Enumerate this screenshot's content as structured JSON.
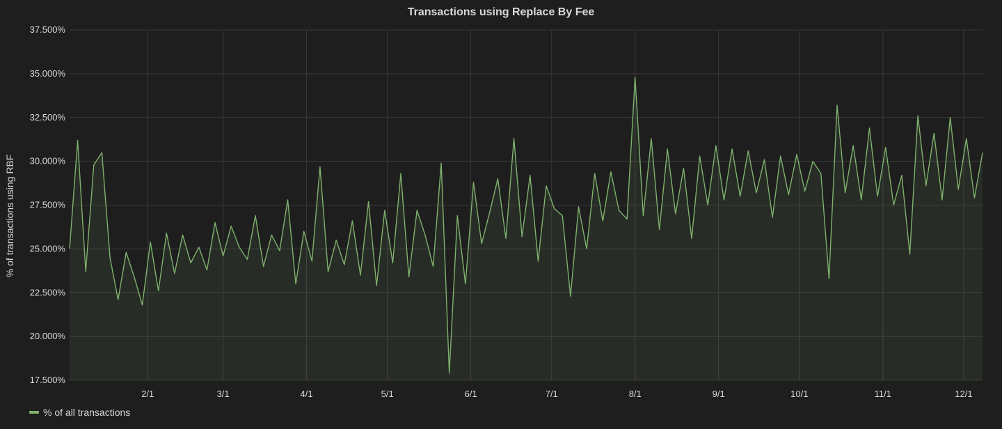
{
  "chart_data": {
    "type": "line",
    "title": "Transactions using Replace By Fee",
    "ylabel": "% of transactions using RBF",
    "xlabel": "",
    "ylim": [
      17.5,
      37.5
    ],
    "yticks": [
      17.5,
      20,
      22.5,
      25,
      27.5,
      30,
      32.5,
      35,
      37.5
    ],
    "ytick_labels": [
      "17.500%",
      "20.000%",
      "22.500%",
      "25.000%",
      "27.500%",
      "30.000%",
      "32.500%",
      "35.000%",
      "37.500%"
    ],
    "xlim": [
      "2017-01-03",
      "2017-12-08"
    ],
    "xticks": [
      "2017-02-01",
      "2017-03-01",
      "2017-04-01",
      "2017-05-01",
      "2017-06-01",
      "2017-07-01",
      "2017-08-01",
      "2017-09-01",
      "2017-10-01",
      "2017-11-01",
      "2017-12-01"
    ],
    "xtick_labels": [
      "2/1",
      "3/1",
      "4/1",
      "5/1",
      "6/1",
      "7/1",
      "8/1",
      "9/1",
      "10/1",
      "11/1",
      "12/1"
    ],
    "grid": true,
    "legend_position": "bottom-left",
    "series": [
      {
        "name": "% of all transactions",
        "color": "#7eb26d",
        "fill": true,
        "x": [
          "2017-01-03",
          "2017-01-06",
          "2017-01-09",
          "2017-01-12",
          "2017-01-15",
          "2017-01-18",
          "2017-01-21",
          "2017-01-24",
          "2017-01-27",
          "2017-01-30",
          "2017-02-02",
          "2017-02-05",
          "2017-02-08",
          "2017-02-11",
          "2017-02-14",
          "2017-02-17",
          "2017-02-20",
          "2017-02-23",
          "2017-02-26",
          "2017-03-01",
          "2017-03-04",
          "2017-03-07",
          "2017-03-10",
          "2017-03-13",
          "2017-03-16",
          "2017-03-19",
          "2017-03-22",
          "2017-03-25",
          "2017-03-28",
          "2017-03-31",
          "2017-04-03",
          "2017-04-06",
          "2017-04-09",
          "2017-04-12",
          "2017-04-15",
          "2017-04-18",
          "2017-04-21",
          "2017-04-24",
          "2017-04-27",
          "2017-04-30",
          "2017-05-03",
          "2017-05-06",
          "2017-05-09",
          "2017-05-12",
          "2017-05-15",
          "2017-05-18",
          "2017-05-21",
          "2017-05-24",
          "2017-05-27",
          "2017-05-30",
          "2017-06-02",
          "2017-06-05",
          "2017-06-08",
          "2017-06-11",
          "2017-06-14",
          "2017-06-17",
          "2017-06-20",
          "2017-06-23",
          "2017-06-26",
          "2017-06-29",
          "2017-07-02",
          "2017-07-05",
          "2017-07-08",
          "2017-07-11",
          "2017-07-14",
          "2017-07-17",
          "2017-07-20",
          "2017-07-23",
          "2017-07-26",
          "2017-07-29",
          "2017-08-01",
          "2017-08-04",
          "2017-08-07",
          "2017-08-10",
          "2017-08-13",
          "2017-08-16",
          "2017-08-19",
          "2017-08-22",
          "2017-08-25",
          "2017-08-28",
          "2017-08-31",
          "2017-09-03",
          "2017-09-06",
          "2017-09-09",
          "2017-09-12",
          "2017-09-15",
          "2017-09-18",
          "2017-09-21",
          "2017-09-24",
          "2017-09-27",
          "2017-09-30",
          "2017-10-03",
          "2017-10-06",
          "2017-10-09",
          "2017-10-12",
          "2017-10-15",
          "2017-10-18",
          "2017-10-21",
          "2017-10-24",
          "2017-10-27",
          "2017-10-30",
          "2017-11-02",
          "2017-11-05",
          "2017-11-08",
          "2017-11-11",
          "2017-11-14",
          "2017-11-17",
          "2017-11-20",
          "2017-11-23",
          "2017-11-26",
          "2017-11-29",
          "2017-12-02",
          "2017-12-05",
          "2017-12-08"
        ],
        "y": [
          25.0,
          31.2,
          23.7,
          29.8,
          30.5,
          24.5,
          22.1,
          24.8,
          23.4,
          21.8,
          25.4,
          22.6,
          25.9,
          23.6,
          25.8,
          24.2,
          25.1,
          23.8,
          26.5,
          24.6,
          26.3,
          25.1,
          24.4,
          26.9,
          24.0,
          25.8,
          24.9,
          27.8,
          23.0,
          26.0,
          24.3,
          29.7,
          23.7,
          25.5,
          24.1,
          26.6,
          23.5,
          27.7,
          22.9,
          27.2,
          24.2,
          29.3,
          23.4,
          27.2,
          25.8,
          24.0,
          29.9,
          17.9,
          26.9,
          23.0,
          28.8,
          25.3,
          27.1,
          29.0,
          25.6,
          31.3,
          25.7,
          29.2,
          24.3,
          28.6,
          27.3,
          26.9,
          22.3,
          27.4,
          25.0,
          29.3,
          26.6,
          29.4,
          27.2,
          26.7,
          34.8,
          26.9,
          31.3,
          26.1,
          30.7,
          27.0,
          29.6,
          25.6,
          30.3,
          27.5,
          30.9,
          27.8,
          30.7,
          28.0,
          30.6,
          28.2,
          30.1,
          26.8,
          30.3,
          28.1,
          30.4,
          28.3,
          30.0,
          29.3,
          23.3,
          33.2,
          28.2,
          30.9,
          27.8,
          31.9,
          28.0,
          30.8,
          27.5,
          29.2,
          24.7,
          32.6,
          28.6,
          31.6,
          27.8,
          32.5,
          28.4,
          31.3,
          27.9,
          30.5
        ]
      }
    ]
  }
}
